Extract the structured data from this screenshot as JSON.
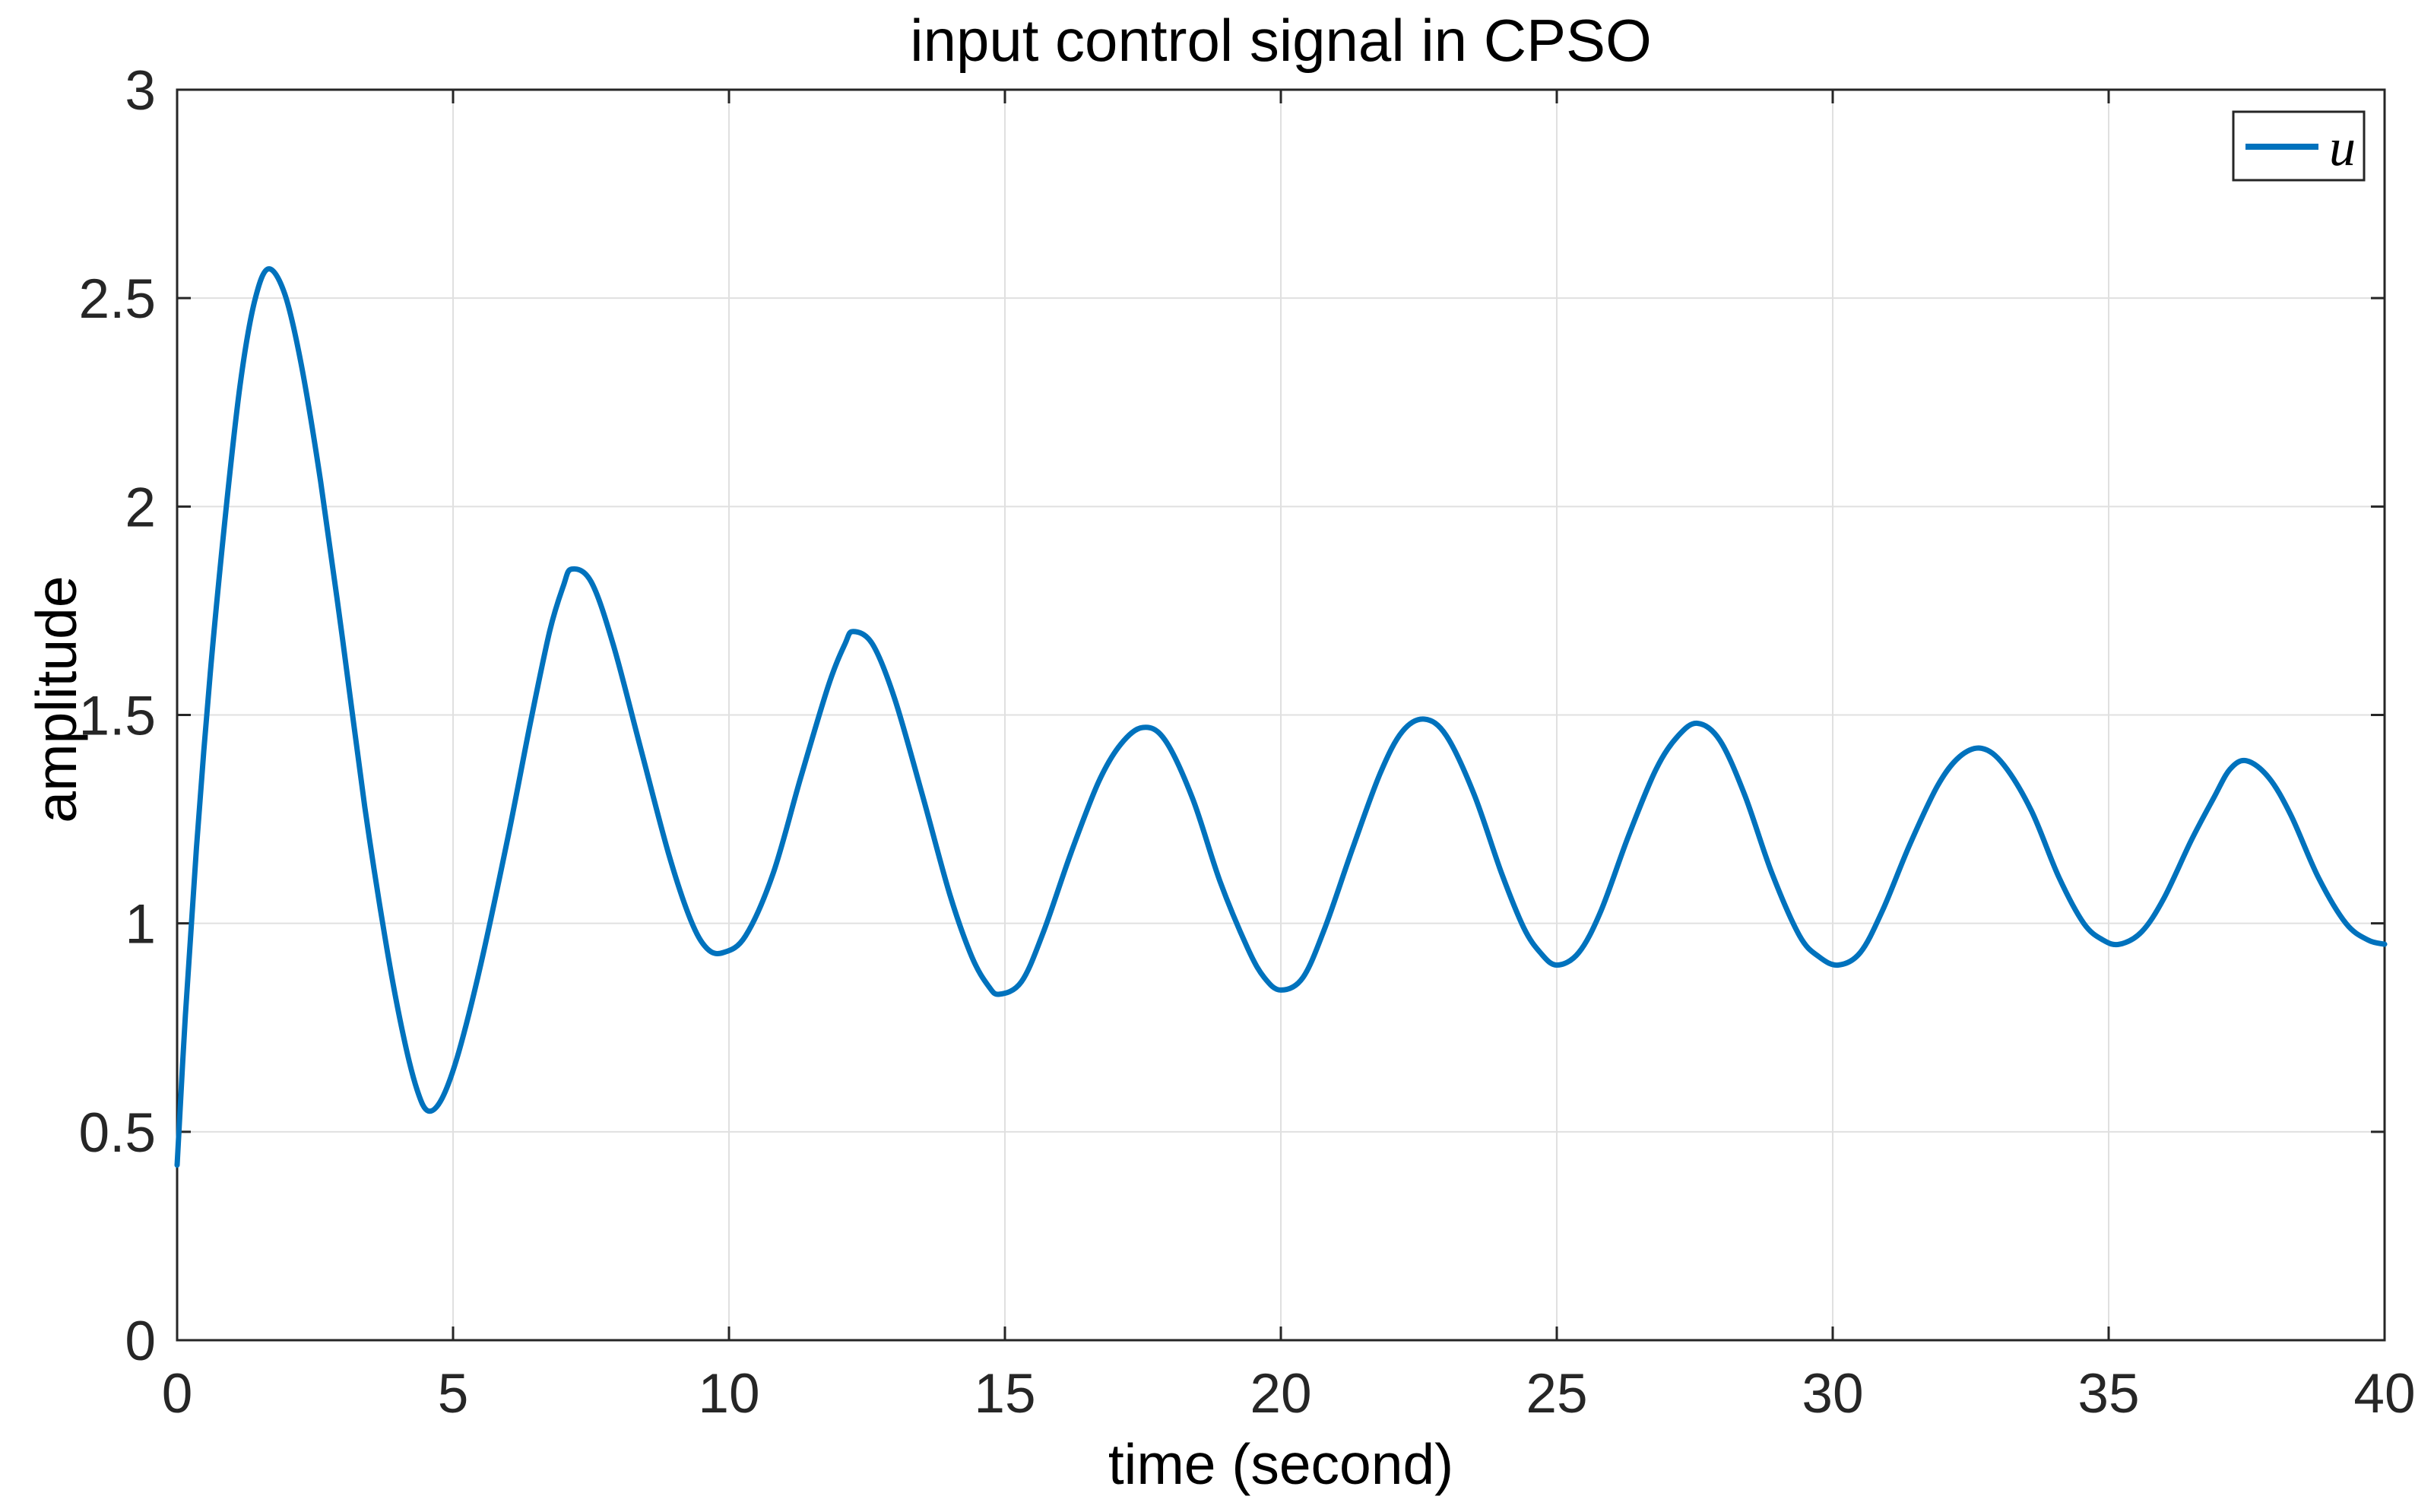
{
  "figure": {
    "title": "input control signal in CPSO",
    "xlabel": "time (second)",
    "ylabel": "amplitude"
  },
  "colors": {
    "series": "#0072BD",
    "grid": "#E0E0E0",
    "axis": "#262626",
    "tick_text": "#262626",
    "label_text": "#000000",
    "background": "#FFFFFF"
  },
  "legend": {
    "position": "top-right",
    "entries": [
      {
        "label": "u",
        "color": "#0072BD"
      }
    ]
  },
  "chart_data": {
    "type": "line",
    "title": "input control signal in CPSO",
    "xlabel": "time (second)",
    "ylabel": "amplitude",
    "xlim": [
      0,
      40
    ],
    "ylim": [
      0,
      3
    ],
    "xticks": [
      0,
      5,
      10,
      15,
      20,
      25,
      30,
      35,
      40
    ],
    "yticks": [
      0,
      0.5,
      1,
      1.5,
      2,
      2.5,
      3
    ],
    "grid": true,
    "legend_position": "top-right",
    "series": [
      {
        "name": "u",
        "color": "#0072BD",
        "points": [
          [
            0,
            0.42
          ],
          [
            0.15,
            0.78
          ],
          [
            0.35,
            1.18
          ],
          [
            0.6,
            1.6
          ],
          [
            0.9,
            2.01
          ],
          [
            1.15,
            2.3
          ],
          [
            1.4,
            2.49
          ],
          [
            1.65,
            2.57
          ],
          [
            1.95,
            2.51
          ],
          [
            2.25,
            2.34
          ],
          [
            2.6,
            2.06
          ],
          [
            3.0,
            1.68
          ],
          [
            3.4,
            1.28
          ],
          [
            3.8,
            0.94
          ],
          [
            4.1,
            0.73
          ],
          [
            4.35,
            0.6
          ],
          [
            4.55,
            0.55
          ],
          [
            4.8,
            0.58
          ],
          [
            5.1,
            0.69
          ],
          [
            5.5,
            0.9
          ],
          [
            6.0,
            1.21
          ],
          [
            6.4,
            1.48
          ],
          [
            6.75,
            1.7
          ],
          [
            7.0,
            1.81
          ],
          [
            7.15,
            1.85
          ],
          [
            7.5,
            1.82
          ],
          [
            7.9,
            1.67
          ],
          [
            8.4,
            1.42
          ],
          [
            8.9,
            1.17
          ],
          [
            9.3,
            1.01
          ],
          [
            9.6,
            0.94
          ],
          [
            9.9,
            0.93
          ],
          [
            10.3,
            0.97
          ],
          [
            10.8,
            1.12
          ],
          [
            11.3,
            1.35
          ],
          [
            11.8,
            1.57
          ],
          [
            12.1,
            1.67
          ],
          [
            12.25,
            1.7
          ],
          [
            12.6,
            1.67
          ],
          [
            13.0,
            1.54
          ],
          [
            13.5,
            1.31
          ],
          [
            14.0,
            1.07
          ],
          [
            14.4,
            0.92
          ],
          [
            14.7,
            0.85
          ],
          [
            14.9,
            0.83
          ],
          [
            15.3,
            0.86
          ],
          [
            15.7,
            0.98
          ],
          [
            16.2,
            1.17
          ],
          [
            16.7,
            1.34
          ],
          [
            17.1,
            1.43
          ],
          [
            17.5,
            1.47
          ],
          [
            17.9,
            1.44
          ],
          [
            18.4,
            1.3
          ],
          [
            18.9,
            1.1
          ],
          [
            19.4,
            0.94
          ],
          [
            19.7,
            0.87
          ],
          [
            20.0,
            0.84
          ],
          [
            20.4,
            0.87
          ],
          [
            20.8,
            0.99
          ],
          [
            21.3,
            1.18
          ],
          [
            21.8,
            1.36
          ],
          [
            22.2,
            1.46
          ],
          [
            22.6,
            1.49
          ],
          [
            23.0,
            1.45
          ],
          [
            23.5,
            1.31
          ],
          [
            24.0,
            1.12
          ],
          [
            24.4,
            0.99
          ],
          [
            24.7,
            0.93
          ],
          [
            25.0,
            0.9
          ],
          [
            25.4,
            0.93
          ],
          [
            25.8,
            1.03
          ],
          [
            26.3,
            1.21
          ],
          [
            26.8,
            1.37
          ],
          [
            27.2,
            1.45
          ],
          [
            27.55,
            1.48
          ],
          [
            27.95,
            1.44
          ],
          [
            28.4,
            1.31
          ],
          [
            28.9,
            1.12
          ],
          [
            29.4,
            0.97
          ],
          [
            29.75,
            0.92
          ],
          [
            30.1,
            0.9
          ],
          [
            30.5,
            0.93
          ],
          [
            30.9,
            1.03
          ],
          [
            31.4,
            1.19
          ],
          [
            31.9,
            1.33
          ],
          [
            32.3,
            1.4
          ],
          [
            32.7,
            1.42
          ],
          [
            33.1,
            1.38
          ],
          [
            33.6,
            1.27
          ],
          [
            34.1,
            1.11
          ],
          [
            34.55,
            1.0
          ],
          [
            34.9,
            0.96
          ],
          [
            35.2,
            0.95
          ],
          [
            35.6,
            0.98
          ],
          [
            36.0,
            1.06
          ],
          [
            36.5,
            1.2
          ],
          [
            36.9,
            1.3
          ],
          [
            37.2,
            1.37
          ],
          [
            37.5,
            1.39
          ],
          [
            37.9,
            1.35
          ],
          [
            38.3,
            1.26
          ],
          [
            38.8,
            1.11
          ],
          [
            39.3,
            1.0
          ],
          [
            39.7,
            0.96
          ],
          [
            40.0,
            0.95
          ]
        ]
      }
    ],
    "annotations": {
      "first_peak": [
        1.65,
        2.57
      ],
      "first_trough": [
        4.55,
        0.55
      ],
      "final_value": [
        40,
        0.95
      ]
    }
  }
}
